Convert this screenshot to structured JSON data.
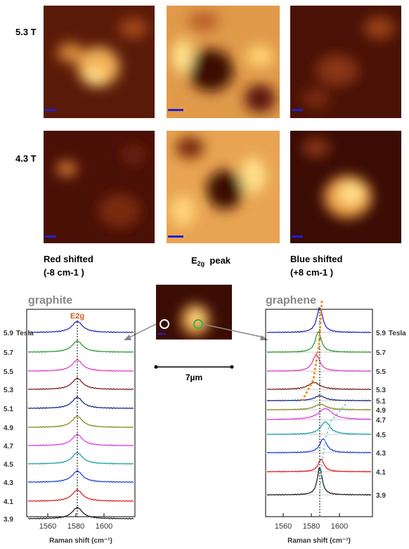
{
  "row_labels": [
    "5.3 T",
    "4.3 T"
  ],
  "column_labels": [
    {
      "line1": "Red shifted",
      "line2": "(-8 cm-1 )"
    },
    {
      "main": "E",
      "sub": "2g",
      "rest": "  peak"
    },
    {
      "line1": "Blue shifted",
      "line2": "(+8 cm-1 )"
    }
  ],
  "left_plot": {
    "title": "graphite",
    "peak_label": "E2g",
    "unit": "Tesla",
    "fields": [
      "5.9",
      "5.7",
      "5.5",
      "5.3",
      "5.1",
      "4.9",
      "4.7",
      "4.5",
      "4.3",
      "4.1",
      "3.9"
    ],
    "xticks": [
      "1560",
      "1580",
      "1600"
    ],
    "xlabel": "Raman shift (cm⁻¹)"
  },
  "right_plot": {
    "title": "graphene",
    "unit": "Tesla",
    "fields": [
      "5.9",
      "5.7",
      "5.5",
      "5.3",
      "5.1",
      "4.9",
      "4.7",
      "4.5",
      "4.3",
      "4.1",
      "3.9"
    ],
    "xticks": [
      "1560",
      "1580",
      "1600"
    ],
    "xlabel": "Raman shift (cm⁻¹)"
  },
  "scale_bar": "7µm"
}
